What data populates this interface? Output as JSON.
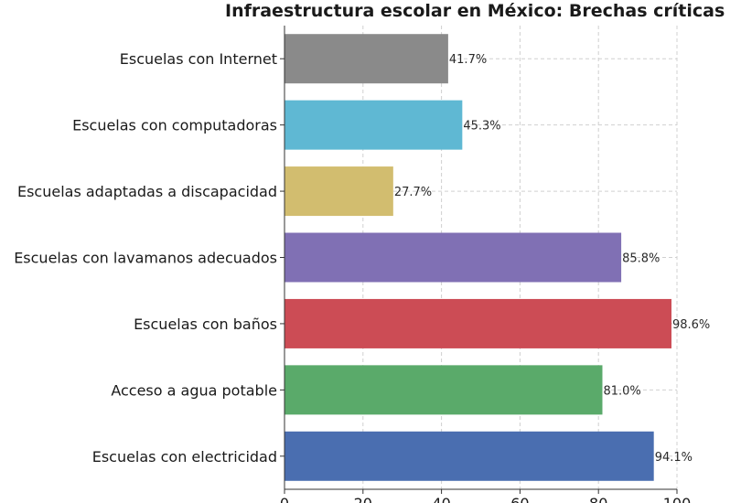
{
  "chart_data": {
    "type": "bar",
    "orientation": "horizontal",
    "title": "Infraestructura escolar en México: Brechas críticas",
    "categories": [
      "Escuelas con Internet",
      "Escuelas con computadoras",
      "Escuelas adaptadas a discapacidad",
      "Escuelas con lavamanos adecuados",
      "Escuelas con baños",
      "Acceso a agua potable",
      "Escuelas con electricidad"
    ],
    "values": [
      41.7,
      45.3,
      27.7,
      85.8,
      98.6,
      81.0,
      94.1
    ],
    "value_labels": [
      "41.7%",
      "45.3%",
      "27.7%",
      "85.8%",
      "98.6%",
      "81.0%",
      "94.1%"
    ],
    "colors": [
      "#8a8a8a",
      "#5fb8d3",
      "#d2bd6f",
      "#8070b4",
      "#cc4c55",
      "#5aaa6a",
      "#4a6eb0"
    ],
    "xlim": [
      0,
      100
    ],
    "xticks": [
      "0",
      "20",
      "40",
      "60",
      "80",
      "100"
    ],
    "xlabel": "",
    "ylabel": "",
    "grid": true
  }
}
